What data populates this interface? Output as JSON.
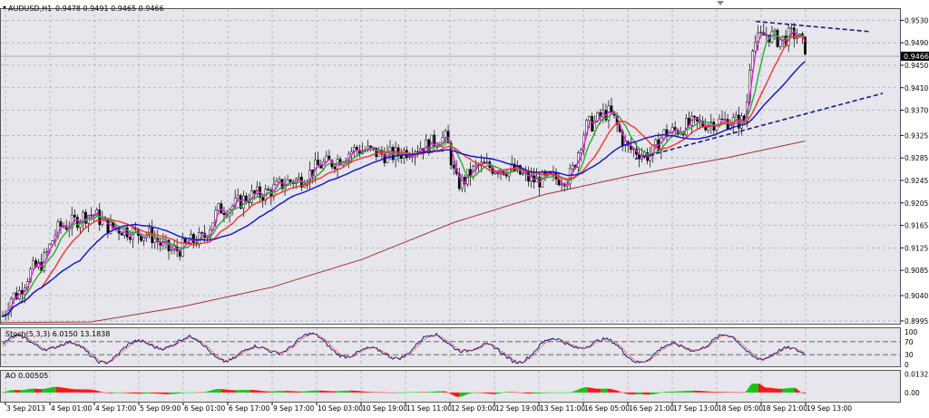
{
  "chart_data": {
    "type": "line",
    "symbol_label": "AUDUSD,H1",
    "ohlc_text": "0.9478 0.9491 0.9465 0.9466",
    "last_price_label": "0.9466",
    "main_price_ticks": [
      "0.9530",
      "0.9490",
      "0.9450",
      "0.9410",
      "0.9370",
      "0.9325",
      "0.9285",
      "0.9245",
      "0.9205",
      "0.9165",
      "0.9125",
      "0.9085",
      "0.9040",
      "0.8995"
    ],
    "main_ylim": [
      0.899,
      0.955
    ],
    "last_price": 0.9466,
    "time_labels": [
      "3 Sep 2013",
      "4 Sep 01:00",
      "4 Sep 17:00",
      "5 Sep 09:00",
      "6 Sep 01:00",
      "6 Sep 17:00",
      "9 Sep 17:00",
      "10 Sep 03:00",
      "10 Sep 19:00",
      "11 Sep 11:00",
      "12 Sep 03:00",
      "12 Sep 19:00",
      "13 Sep 11:00",
      "16 Sep 05:00",
      "16 Sep 21:00",
      "17 Sep 13:00",
      "18 Sep 05:00",
      "18 Sep 21:00",
      "19 Sep 13:00"
    ],
    "price_anchors": [
      [
        0,
        0.9
      ],
      [
        15,
        0.904
      ],
      [
        40,
        0.909
      ],
      [
        70,
        0.9165
      ],
      [
        100,
        0.9185
      ],
      [
        125,
        0.916
      ],
      [
        160,
        0.915
      ],
      [
        190,
        0.912
      ],
      [
        220,
        0.914
      ],
      [
        245,
        0.9195
      ],
      [
        285,
        0.922
      ],
      [
        325,
        0.9245
      ],
      [
        360,
        0.9275
      ],
      [
        395,
        0.93
      ],
      [
        430,
        0.929
      ],
      [
        465,
        0.9305
      ],
      [
        490,
        0.932
      ],
      [
        505,
        0.924
      ],
      [
        530,
        0.927
      ],
      [
        560,
        0.9265
      ],
      [
        590,
        0.9245
      ],
      [
        625,
        0.925
      ],
      [
        650,
        0.9345
      ],
      [
        670,
        0.9365
      ],
      [
        695,
        0.93
      ],
      [
        715,
        0.929
      ],
      [
        735,
        0.933
      ],
      [
        765,
        0.9345
      ],
      [
        795,
        0.935
      ],
      [
        820,
        0.935
      ],
      [
        830,
        0.949
      ],
      [
        845,
        0.9505
      ],
      [
        860,
        0.9495
      ],
      [
        875,
        0.9505
      ],
      [
        890,
        0.948
      ]
    ],
    "series": [
      {
        "role": "fast-ma",
        "color": "#e01fd8",
        "lag": 1
      },
      {
        "role": "ma-2",
        "color": "#2fa82f",
        "lag": 3
      },
      {
        "role": "ma-3",
        "color": "#ff3030",
        "lag": 7
      },
      {
        "role": "slow-ma",
        "color": "#1010d0",
        "lag": 14
      }
    ],
    "long_ma": {
      "color": "#a83232",
      "points": [
        [
          0,
          0.8992
        ],
        [
          100,
          0.8993
        ],
        [
          200,
          0.902
        ],
        [
          300,
          0.9055
        ],
        [
          400,
          0.9105
        ],
        [
          500,
          0.917
        ],
        [
          600,
          0.922
        ],
        [
          700,
          0.9255
        ],
        [
          800,
          0.9285
        ],
        [
          887,
          0.9315
        ]
      ]
    },
    "trendlines": [
      {
        "color": "#1a1a80",
        "from": [
          833,
          0.9528
        ],
        "to": [
          958,
          0.951
        ]
      },
      {
        "color": "#1a1a80",
        "from": [
          700,
          0.9283
        ],
        "to": [
          973,
          0.94
        ]
      }
    ],
    "stochastic": {
      "label": "Stoch(5,3,3) 6.0150 13.1838",
      "ticks": [
        "100",
        "70",
        "30",
        "0"
      ],
      "levels": [
        70,
        30
      ]
    },
    "ao": {
      "label": "AO 0.00505",
      "ticks": [
        "0.01325",
        "0.00"
      ],
      "ylim": [
        -0.006,
        0.015
      ],
      "up_color": "#00c000",
      "down_color": "#ff0000"
    },
    "colors": {
      "background": "#e6e6ec",
      "grid": "#9aa0b0",
      "bull": "#ffffff",
      "bear": "#000000"
    }
  }
}
